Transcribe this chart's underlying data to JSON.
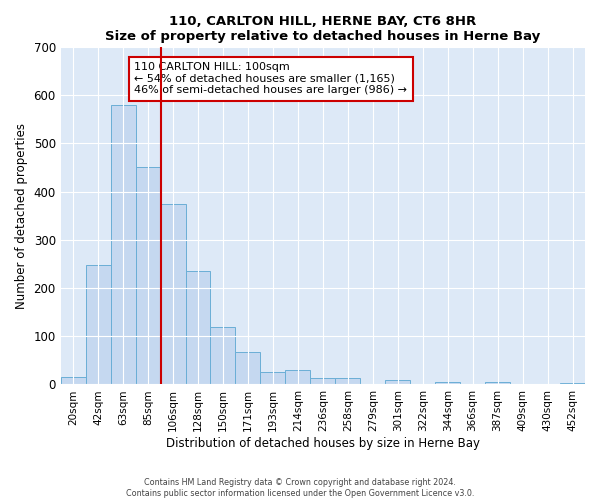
{
  "title": "110, CARLTON HILL, HERNE BAY, CT6 8HR",
  "subtitle": "Size of property relative to detached houses in Herne Bay",
  "xlabel": "Distribution of detached houses by size in Herne Bay",
  "ylabel": "Number of detached properties",
  "bar_labels": [
    "20sqm",
    "42sqm",
    "63sqm",
    "85sqm",
    "106sqm",
    "128sqm",
    "150sqm",
    "171sqm",
    "193sqm",
    "214sqm",
    "236sqm",
    "258sqm",
    "279sqm",
    "301sqm",
    "322sqm",
    "344sqm",
    "366sqm",
    "387sqm",
    "409sqm",
    "430sqm",
    "452sqm"
  ],
  "bar_values": [
    15,
    248,
    580,
    450,
    375,
    235,
    120,
    67,
    25,
    30,
    13,
    13,
    0,
    10,
    0,
    5,
    0,
    5,
    0,
    0,
    4
  ],
  "bar_color": "#c5d8f0",
  "bar_edge_color": "#6aaed6",
  "vline_index": 4,
  "vline_color": "#cc0000",
  "ylim": [
    0,
    700
  ],
  "yticks": [
    0,
    100,
    200,
    300,
    400,
    500,
    600,
    700
  ],
  "annotation_text": "110 CARLTON HILL: 100sqm\n← 54% of detached houses are smaller (1,165)\n46% of semi-detached houses are larger (986) →",
  "annotation_box_color": "#ffffff",
  "annotation_box_edge_color": "#cc0000",
  "footer_line1": "Contains HM Land Registry data © Crown copyright and database right 2024.",
  "footer_line2": "Contains public sector information licensed under the Open Government Licence v3.0.",
  "background_color": "#ffffff",
  "plot_bg_color": "#dde9f7"
}
